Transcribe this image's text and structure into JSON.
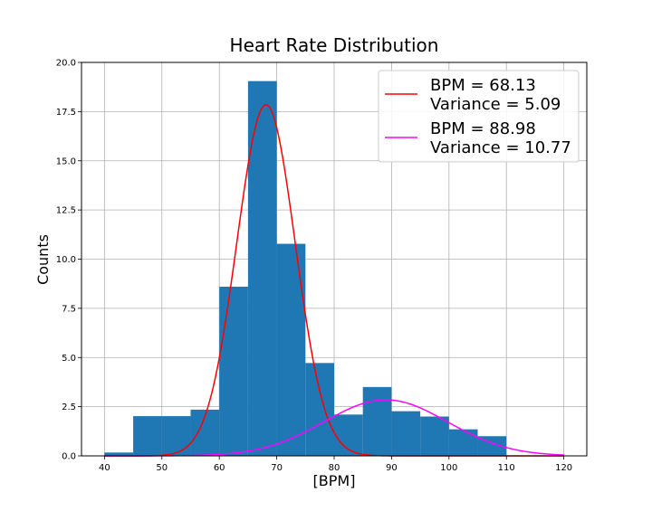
{
  "chart_data": {
    "type": "bar",
    "title": "Heart Rate Distribution",
    "xlabel": "[BPM]",
    "ylabel": "Counts",
    "xlim": [
      36,
      124
    ],
    "ylim": [
      0,
      20
    ],
    "x_ticks": [
      40,
      50,
      60,
      70,
      80,
      90,
      100,
      110,
      120
    ],
    "y_ticks": [
      0.0,
      2.5,
      5.0,
      7.5,
      10.0,
      12.5,
      15.0,
      17.5,
      20.0
    ],
    "y_tick_labels": [
      "0.0",
      "2.5",
      "5.0",
      "7.5",
      "10.0",
      "12.5",
      "15.0",
      "17.5",
      "20.0"
    ],
    "grid": true,
    "bar_color": "#1f77b4",
    "histogram": {
      "bin_edges": [
        40,
        45,
        50,
        55,
        60,
        65,
        70,
        75,
        80,
        85,
        90,
        95,
        100,
        105,
        110
      ],
      "counts": [
        0.17,
        2.02,
        2.02,
        2.35,
        8.6,
        19.05,
        10.78,
        4.72,
        2.1,
        3.5,
        2.27,
        2.0,
        1.35,
        1.0
      ]
    },
    "series": [
      {
        "name": "BPM = 68.13\nVariance = 5.09",
        "type": "gaussian",
        "mean": 68.13,
        "sd": 5.09,
        "peak": 17.85,
        "color": "#ff0000",
        "x_range": [
          40,
          120
        ]
      },
      {
        "name": "BPM = 88.98\nVariance = 10.77",
        "type": "gaussian",
        "mean": 88.98,
        "sd": 10.77,
        "peak": 2.85,
        "color": "#ff00ff",
        "x_range": [
          40,
          120
        ]
      }
    ],
    "legend": {
      "placement": "top-right",
      "entries": [
        {
          "line1": "BPM = 68.13",
          "line2": "Variance = 5.09",
          "color": "#ff0000"
        },
        {
          "line1": "BPM = 88.98",
          "line2": "Variance = 10.77",
          "color": "#ff00ff"
        }
      ]
    }
  }
}
